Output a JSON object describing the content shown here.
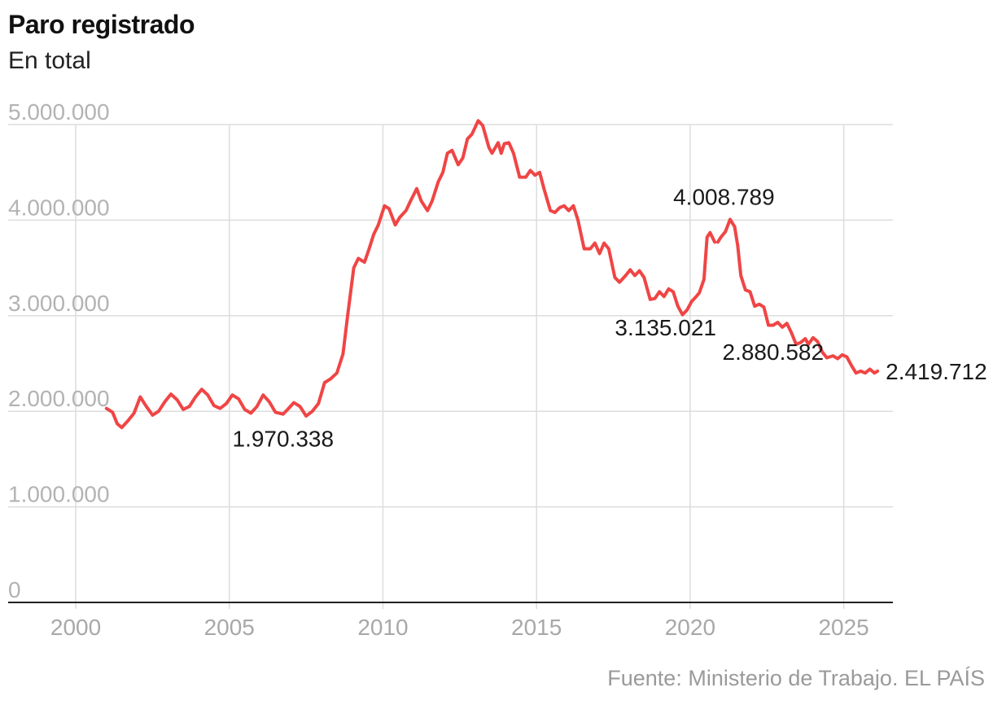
{
  "title": "Paro registrado",
  "subtitle": "En total",
  "source": "Fuente: Ministerio de Trabajo. EL PAÍS",
  "colors": {
    "line": "#f04545",
    "grid": "#dddddd",
    "axis": "#222222"
  },
  "chart_data": {
    "type": "line",
    "title": "Paro registrado",
    "subtitle": "En total",
    "xlabel": "",
    "ylabel": "",
    "xlim": [
      1997.8,
      2026.6
    ],
    "ylim": [
      0,
      5000000
    ],
    "grid": true,
    "y_ticks": [
      0,
      1000000,
      2000000,
      3000000,
      4000000,
      5000000
    ],
    "y_tick_labels": [
      "0",
      "1.000.000",
      "2.000.000",
      "3.000.000",
      "4.000.000",
      "5.000.000"
    ],
    "x_ticks": [
      2000,
      2005,
      2010,
      2015,
      2020,
      2025
    ],
    "x_tick_labels": [
      "2000",
      "2005",
      "2010",
      "2015",
      "2020",
      "2025"
    ],
    "annotations": [
      {
        "label": "1.970.338",
        "x": 2006.75,
        "y": 1970338,
        "position": "below"
      },
      {
        "label": "3.135.021",
        "x": 2019.2,
        "y": 3135021,
        "position": "below"
      },
      {
        "label": "4.008.789",
        "x": 2021.1,
        "y": 4008789,
        "position": "above"
      },
      {
        "label": "2.880.582",
        "x": 2022.7,
        "y": 2880582,
        "position": "below"
      },
      {
        "label": "2.419.712",
        "x": 2026.1,
        "y": 2419712,
        "position": "right"
      }
    ],
    "series": [
      {
        "name": "Paro registrado",
        "segments": [
          [
            [
              2001.0,
              2030000
            ],
            [
              2001.2,
              1990000
            ],
            [
              2001.35,
              1870000
            ],
            [
              2001.5,
              1830000
            ],
            [
              2001.7,
              1900000
            ],
            [
              2001.9,
              1980000
            ],
            [
              2002.1,
              2150000
            ],
            [
              2002.3,
              2050000
            ],
            [
              2002.5,
              1960000
            ],
            [
              2002.7,
              2000000
            ],
            [
              2002.9,
              2100000
            ],
            [
              2003.1,
              2180000
            ],
            [
              2003.3,
              2120000
            ],
            [
              2003.5,
              2020000
            ],
            [
              2003.7,
              2050000
            ],
            [
              2003.9,
              2150000
            ],
            [
              2004.1,
              2230000
            ],
            [
              2004.3,
              2170000
            ],
            [
              2004.5,
              2060000
            ],
            [
              2004.7,
              2030000
            ],
            [
              2004.9,
              2080000
            ],
            [
              2005.1,
              2170000
            ],
            [
              2005.3,
              2130000
            ],
            [
              2005.5,
              2020000
            ],
            [
              2005.7,
              1980000
            ],
            [
              2005.9,
              2050000
            ],
            [
              2006.1,
              2170000
            ],
            [
              2006.3,
              2100000
            ],
            [
              2006.5,
              1990000
            ],
            [
              2006.75,
              1970338
            ],
            [
              2006.9,
              2020000
            ],
            [
              2007.1,
              2090000
            ],
            [
              2007.3,
              2050000
            ],
            [
              2007.5,
              1950000
            ],
            [
              2007.7,
              2000000
            ],
            [
              2007.9,
              2080000
            ],
            [
              2008.1,
              2300000
            ],
            [
              2008.3,
              2340000
            ],
            [
              2008.5,
              2400000
            ],
            [
              2008.7,
              2600000
            ],
            [
              2008.85,
              3000000
            ],
            [
              2009.05,
              3500000
            ],
            [
              2009.2,
              3600000
            ],
            [
              2009.4,
              3560000
            ],
            [
              2009.55,
              3700000
            ],
            [
              2009.7,
              3850000
            ],
            [
              2009.85,
              3950000
            ],
            [
              2010.05,
              4150000
            ],
            [
              2010.2,
              4120000
            ],
            [
              2010.4,
              3950000
            ],
            [
              2010.55,
              4030000
            ],
            [
              2010.75,
              4100000
            ],
            [
              2010.9,
              4200000
            ],
            [
              2011.1,
              4330000
            ],
            [
              2011.25,
              4200000
            ],
            [
              2011.45,
              4100000
            ],
            [
              2011.6,
              4200000
            ],
            [
              2011.8,
              4400000
            ],
            [
              2011.95,
              4500000
            ],
            [
              2012.1,
              4700000
            ],
            [
              2012.25,
              4730000
            ],
            [
              2012.45,
              4580000
            ],
            [
              2012.6,
              4650000
            ],
            [
              2012.75,
              4850000
            ],
            [
              2012.9,
              4900000
            ],
            [
              2013.1,
              5040000
            ],
            [
              2013.25,
              4990000
            ],
            [
              2013.45,
              4760000
            ],
            [
              2013.55,
              4700000
            ],
            [
              2013.75,
              4810000
            ],
            [
              2013.85,
              4700000
            ],
            [
              2013.95,
              4800000
            ],
            [
              2014.1,
              4810000
            ],
            [
              2014.25,
              4700000
            ],
            [
              2014.45,
              4450000
            ],
            [
              2014.65,
              4450000
            ],
            [
              2014.8,
              4520000
            ],
            [
              2014.95,
              4470000
            ],
            [
              2015.1,
              4500000
            ],
            [
              2015.25,
              4320000
            ],
            [
              2015.45,
              4100000
            ],
            [
              2015.6,
              4080000
            ],
            [
              2015.75,
              4130000
            ],
            [
              2015.9,
              4150000
            ],
            [
              2016.05,
              4100000
            ],
            [
              2016.2,
              4150000
            ],
            [
              2016.35,
              4000000
            ],
            [
              2016.55,
              3700000
            ],
            [
              2016.75,
              3700000
            ],
            [
              2016.9,
              3760000
            ],
            [
              2017.05,
              3650000
            ],
            [
              2017.2,
              3760000
            ],
            [
              2017.35,
              3700000
            ],
            [
              2017.55,
              3400000
            ],
            [
              2017.7,
              3350000
            ],
            [
              2017.9,
              3420000
            ],
            [
              2018.05,
              3480000
            ],
            [
              2018.2,
              3420000
            ],
            [
              2018.35,
              3470000
            ],
            [
              2018.5,
              3400000
            ],
            [
              2018.7,
              3170000
            ],
            [
              2018.85,
              3180000
            ],
            [
              2019.0,
              3250000
            ],
            [
              2019.15,
              3200000
            ],
            [
              2019.3,
              3280000
            ],
            [
              2019.45,
              3250000
            ],
            [
              2019.6,
              3100000
            ],
            [
              2019.75,
              3010000
            ],
            [
              2019.9,
              3060000
            ],
            [
              2020.05,
              3150000
            ],
            [
              2020.2,
              3200000
            ],
            [
              2020.3,
              3240000
            ],
            [
              2020.45,
              3380000
            ],
            [
              2020.55,
              3820000
            ],
            [
              2020.65,
              3870000
            ],
            [
              2020.8,
              3770000
            ]
          ],
          [
            [
              2020.9,
              3770000
            ],
            [
              2021.0,
              3820000
            ],
            [
              2021.15,
              3880000
            ],
            [
              2021.3,
              4008789
            ],
            [
              2021.45,
              3930000
            ],
            [
              2021.55,
              3730000
            ],
            [
              2021.65,
              3420000
            ],
            [
              2021.8,
              3270000
            ],
            [
              2021.95,
              3250000
            ],
            [
              2022.1,
              3100000
            ],
            [
              2022.25,
              3120000
            ],
            [
              2022.4,
              3090000
            ],
            [
              2022.55,
              2900000
            ],
            [
              2022.7,
              2900000
            ],
            [
              2022.85,
              2930000
            ],
            [
              2023.0,
              2880000
            ],
            [
              2023.15,
              2920000
            ],
            [
              2023.3,
              2820000
            ],
            [
              2023.45,
              2700000
            ],
            [
              2023.6,
              2720000
            ],
            [
              2023.75,
              2760000
            ],
            [
              2023.85,
              2700000
            ],
            [
              2024.0,
              2770000
            ],
            [
              2024.15,
              2730000
            ],
            [
              2024.3,
              2620000
            ],
            [
              2024.45,
              2560000
            ],
            [
              2024.65,
              2580000
            ],
            [
              2024.8,
              2550000
            ],
            [
              2024.95,
              2590000
            ],
            [
              2025.1,
              2570000
            ],
            [
              2025.25,
              2480000
            ],
            [
              2025.4,
              2400000
            ],
            [
              2025.55,
              2420000
            ],
            [
              2025.7,
              2400000
            ],
            [
              2025.85,
              2440000
            ],
            [
              2026.0,
              2400000
            ],
            [
              2026.1,
              2419712
            ]
          ]
        ]
      }
    ]
  }
}
